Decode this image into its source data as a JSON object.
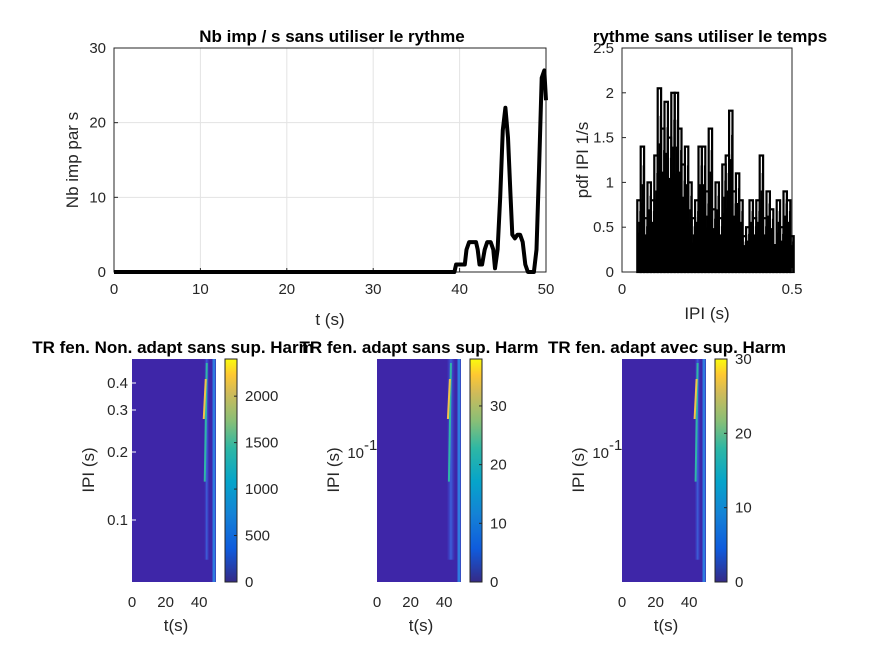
{
  "chart_data": [
    {
      "type": "line",
      "title": "Nb imp / s sans utiliser le rythme",
      "xlabel": "t (s)",
      "ylabel": "Nb imp par s",
      "xlim": [
        0,
        50
      ],
      "ylim": [
        0,
        30
      ],
      "xticks": [
        "0",
        "10",
        "20",
        "30",
        "40",
        "50"
      ],
      "yticks": [
        "0",
        "10",
        "20",
        "30"
      ],
      "grid": true,
      "series": [
        {
          "color": "#000000",
          "x": [
            0,
            39.4,
            39.6,
            40.6,
            40.8,
            41.1,
            41.5,
            41.9,
            42.1,
            42.3,
            42.6,
            42.9,
            43.2,
            43.6,
            43.9,
            44.1,
            44.4,
            44.7,
            45.0,
            45.3,
            45.6,
            45.9,
            46.1,
            46.4,
            46.7,
            47.0,
            47.3,
            47.6,
            47.9,
            48.2,
            48.6,
            48.9,
            49.2,
            49.5,
            49.8,
            50.0
          ],
          "y": [
            0,
            0,
            1,
            1,
            3,
            4,
            4,
            4,
            3,
            1,
            1,
            3,
            4,
            4,
            3,
            0.5,
            3,
            10,
            19,
            22,
            18,
            10,
            5,
            4.5,
            5,
            5,
            4,
            1,
            0,
            0,
            0,
            3,
            14,
            26,
            27,
            23
          ]
        }
      ]
    },
    {
      "type": "bar",
      "title": "rythme sans utiliser le temps",
      "xlabel": "IPI (s)",
      "ylabel": "pdf IPI 1/s",
      "xlim": [
        0,
        0.5
      ],
      "ylim": [
        0,
        2.5
      ],
      "xticks": [
        "0",
        "0.5"
      ],
      "yticks": [
        "0",
        "0.5",
        "1",
        "1.5",
        "2",
        "2.5"
      ],
      "grid": false,
      "x": [
        0.05,
        0.06,
        0.07,
        0.08,
        0.09,
        0.1,
        0.11,
        0.12,
        0.13,
        0.14,
        0.15,
        0.16,
        0.17,
        0.18,
        0.19,
        0.2,
        0.21,
        0.22,
        0.23,
        0.24,
        0.25,
        0.26,
        0.27,
        0.28,
        0.29,
        0.3,
        0.31,
        0.32,
        0.33,
        0.34,
        0.35,
        0.36,
        0.37,
        0.38,
        0.39,
        0.4,
        0.41,
        0.42,
        0.43,
        0.44,
        0.45,
        0.46,
        0.47,
        0.48,
        0.49,
        0.5
      ],
      "values": [
        0.8,
        1.4,
        0.6,
        1.0,
        0.8,
        1.3,
        2.05,
        1.6,
        1.9,
        1.5,
        2.0,
        2.0,
        1.6,
        1.2,
        1.4,
        1.0,
        0.6,
        0.8,
        1.4,
        1.4,
        0.9,
        1.6,
        0.7,
        1.0,
        0.6,
        1.2,
        1.3,
        1.8,
        0.9,
        1.1,
        0.8,
        0.4,
        0.5,
        0.8,
        0.6,
        0.8,
        1.3,
        0.6,
        0.9,
        0.7,
        0.3,
        0.8,
        0.5,
        0.9,
        0.8,
        0.4
      ],
      "noise_floor": 0.3
    },
    {
      "type": "heatmap",
      "title": "TR fen. Non. adapt sans sup. Harm",
      "xlabel": "t(s)",
      "ylabel": "IPI (s)",
      "xticks": [
        "0",
        "20",
        "40"
      ],
      "yticks": [
        "0.1",
        "0.2",
        "0.3",
        "0.4"
      ],
      "colorbar": {
        "ticks": [
          "0",
          "500",
          "1000",
          "1500",
          "2000"
        ],
        "max": 2400
      },
      "colormap": "parula"
    },
    {
      "type": "heatmap",
      "title": "TR fen. adapt sans sup. Harm",
      "xlabel": "t(s)",
      "ylabel": "IPI (s)",
      "xticks": [
        "0",
        "20",
        "40"
      ],
      "yticks": [
        "10",
        "-1"
      ],
      "colorbar": {
        "ticks": [
          "0",
          "10",
          "20",
          "30"
        ],
        "max": 38
      },
      "colormap": "parula"
    },
    {
      "type": "heatmap",
      "title": "TR fen. adapt avec sup. Harm",
      "xlabel": "t(s)",
      "ylabel": "IPI (s)",
      "xticks": [
        "0",
        "20",
        "40"
      ],
      "yticks": [
        "10",
        "-1"
      ],
      "colorbar": {
        "ticks": [
          "0",
          "10",
          "20",
          "30"
        ],
        "max": 30
      },
      "colormap": "parula"
    }
  ]
}
